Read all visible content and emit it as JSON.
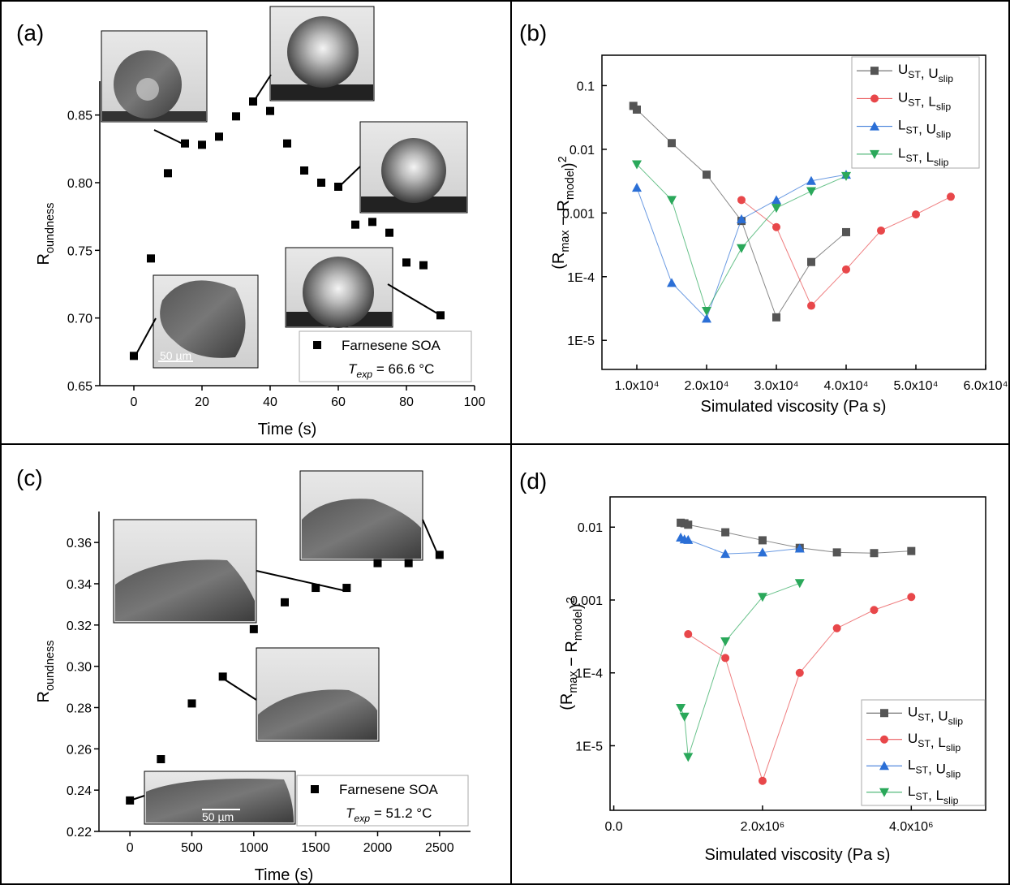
{
  "chart_data": [
    {
      "type": "scatter",
      "panel_label": "(a)",
      "x_label": "Time (s)",
      "y_label": "Roundness",
      "xlim": [
        -10,
        100
      ],
      "xticks": [
        0,
        20,
        40,
        60,
        80,
        100
      ],
      "ylim": [
        0.65,
        0.875
      ],
      "yticks": [
        0.65,
        {
          "value": 0.7,
          "label": "0.70"
        },
        0.75,
        {
          "value": 0.8,
          "label": "0.80"
        },
        0.85
      ],
      "series": [
        {
          "name": "Farnesene SOA",
          "color": "#000000",
          "marker": "square",
          "x": [
            0,
            5,
            10,
            15,
            20,
            25,
            30,
            35,
            40,
            45,
            50,
            55,
            60,
            65,
            70,
            75,
            80,
            85,
            90
          ],
          "values": [
            0.672,
            0.744,
            0.807,
            0.829,
            0.828,
            0.834,
            0.849,
            0.86,
            0.853,
            0.829,
            0.809,
            0.8,
            0.797,
            0.769,
            0.771,
            0.763,
            0.741,
            0.739,
            0.702
          ]
        }
      ],
      "annotation": "Texp = 66.6 °C",
      "scale_bar": "50 µm"
    },
    {
      "type": "line",
      "panel_label": "(b)",
      "x_label": "Simulated viscosity (Pa s)",
      "y_label": "(Rmax − Rmodel)2",
      "log_y": true,
      "legend": "upper right",
      "xlim": [
        5000,
        60000
      ],
      "xticks": [
        {
          "value": 10000,
          "label": "1.0x10⁴"
        },
        {
          "value": 20000,
          "label": "2.0x10⁴"
        },
        {
          "value": 30000,
          "label": "3.0x10⁴"
        },
        {
          "value": 40000,
          "label": "4.0x10⁴"
        },
        {
          "value": 50000,
          "label": "5.0x10⁴"
        },
        {
          "value": 60000,
          "label": "6.0x10⁴"
        }
      ],
      "ylim": [
        3.5e-06,
        0.3
      ],
      "yticks": [
        {
          "value": 1e-05,
          "label": "1E-5"
        },
        {
          "value": 0.0001,
          "label": "1E-4"
        },
        0.001,
        0.01,
        0.1
      ],
      "series": [
        {
          "name": "UST, Uslip",
          "color": "#555555",
          "marker": "square",
          "x": [
            9500,
            10000,
            15000,
            20000,
            25000,
            30000,
            35000,
            40000
          ],
          "values": [
            0.048,
            0.042,
            0.0125,
            0.004,
            0.00075,
            2.3e-05,
            0.00017,
            0.0005
          ]
        },
        {
          "name": "UST, Lslip",
          "color": "#e8474a",
          "marker": "circle",
          "x": [
            25000,
            30000,
            35000,
            40000,
            45000,
            50000,
            55000
          ],
          "values": [
            0.0016,
            0.0006,
            3.5e-05,
            0.00013,
            0.00053,
            0.00095,
            0.0018
          ]
        },
        {
          "name": "LST, Uslip",
          "color": "#2b6fd6",
          "marker": "triangle-up",
          "x": [
            10000,
            15000,
            20000,
            25000,
            30000,
            35000,
            40000
          ],
          "values": [
            0.0025,
            8e-05,
            2.2e-05,
            0.0008,
            0.0016,
            0.0032,
            0.004
          ]
        },
        {
          "name": "LST, Lslip",
          "color": "#2aa85a",
          "marker": "triangle-down",
          "x": [
            10000,
            15000,
            20000,
            25000,
            30000,
            35000,
            40000
          ],
          "values": [
            0.0058,
            0.0016,
            2.9e-05,
            0.00028,
            0.0012,
            0.0022,
            0.0038
          ]
        }
      ]
    },
    {
      "type": "scatter",
      "panel_label": "(c)",
      "x_label": "Time (s)",
      "y_label": "Roundness",
      "xlim": [
        -250,
        2750
      ],
      "xticks": [
        0,
        500,
        1000,
        1500,
        2000,
        2500
      ],
      "ylim": [
        0.22,
        0.375
      ],
      "yticks": [
        0.22,
        0.24,
        0.26,
        0.28,
        {
          "value": 0.3,
          "label": "0.30"
        },
        0.32,
        0.34,
        0.36
      ],
      "series": [
        {
          "name": "Farnesene SOA",
          "color": "#000000",
          "marker": "square",
          "x": [
            0,
            250,
            500,
            750,
            1000,
            1250,
            1500,
            1750,
            2000,
            2250,
            2500
          ],
          "values": [
            0.235,
            0.255,
            0.282,
            0.295,
            0.318,
            0.331,
            0.338,
            0.338,
            0.35,
            0.35,
            0.354
          ]
        }
      ],
      "annotation": "Texp = 51.2 °C",
      "scale_bar": "50 µm"
    },
    {
      "type": "line",
      "panel_label": "(d)",
      "x_label": "Simulated viscosity (Pa s)",
      "y_label": "(Rmax − Rmodel)2",
      "log_y": true,
      "legend": "lower right",
      "xlim": [
        -50000,
        5000000
      ],
      "xticks": [
        {
          "value": 0,
          "label": "0.0"
        },
        {
          "value": 2000000,
          "label": "2.0x10⁶"
        },
        {
          "value": 4000000,
          "label": "4.0x10⁶"
        }
      ],
      "ylim": [
        1.3e-06,
        0.026
      ],
      "yticks": [
        {
          "value": 1e-05,
          "label": "1E-5"
        },
        {
          "value": 0.0001,
          "label": "1E-4"
        },
        0.001,
        0.01
      ],
      "series": [
        {
          "name": "UST, Uslip",
          "color": "#555555",
          "marker": "square",
          "x": [
            900000,
            950000,
            1000000,
            1500000,
            2000000,
            2500000,
            3000000,
            3500000,
            4000000
          ],
          "values": [
            0.0115,
            0.0113,
            0.0108,
            0.0085,
            0.0066,
            0.0052,
            0.0045,
            0.0044,
            0.0047
          ]
        },
        {
          "name": "UST, Lslip",
          "color": "#e8474a",
          "marker": "circle",
          "x": [
            1000000,
            1500000,
            2000000,
            2500000,
            3000000,
            3500000,
            4000000
          ],
          "values": [
            0.00034,
            0.00016,
            3.3e-06,
            0.0001,
            0.00041,
            0.00073,
            0.0011
          ]
        },
        {
          "name": "LST, Uslip",
          "color": "#2b6fd6",
          "marker": "triangle-up",
          "x": [
            900000,
            950000,
            1000000,
            1500000,
            2000000,
            2500000
          ],
          "values": [
            0.0072,
            0.0068,
            0.0067,
            0.0043,
            0.0045,
            0.0051
          ]
        },
        {
          "name": "LST, Lslip",
          "color": "#2aa85a",
          "marker": "triangle-down",
          "x": [
            900000,
            950000,
            1000000,
            1500000,
            2000000,
            2500000
          ],
          "values": [
            3.3e-05,
            2.5e-05,
            7e-06,
            0.00027,
            0.0011,
            0.0017
          ]
        }
      ]
    }
  ]
}
